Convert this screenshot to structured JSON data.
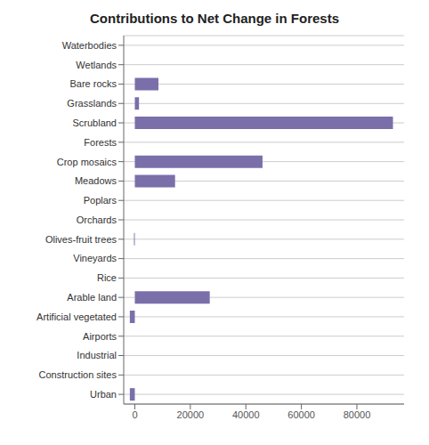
{
  "chart_data": {
    "type": "bar",
    "title": "Contributions to Net Change in Forests",
    "orientation": "horizontal",
    "categories": [
      "Waterbodies",
      "Wetlands",
      "Bare rocks",
      "Grasslands",
      "Scrubland",
      "Forests",
      "Crop mosaics",
      "Meadows",
      "Poplars",
      "Orchards",
      "Olives-fruit trees",
      "Vineyards",
      "Rice",
      "Arable land",
      "Artificial vegetated",
      "Airports",
      "Industrial",
      "Construction sites",
      "Urban"
    ],
    "values": [
      0,
      0,
      8500,
      1500,
      93000,
      0,
      46000,
      14500,
      0,
      0,
      -300,
      0,
      0,
      27000,
      -1800,
      0,
      0,
      0,
      -1800
    ],
    "color": "#7b6faa",
    "xlim": [
      -4000,
      97000
    ],
    "xticks": [
      0,
      20000,
      40000,
      60000,
      80000
    ],
    "grid": true
  }
}
